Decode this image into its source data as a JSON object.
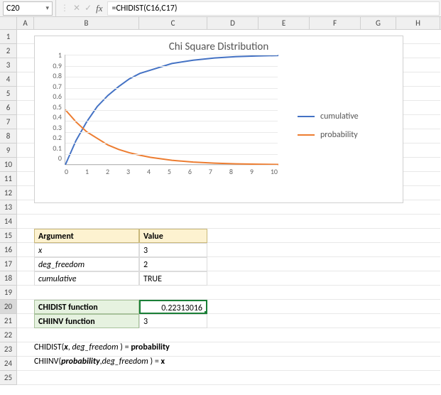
{
  "formula_bar": {
    "cell_ref": "C20",
    "formula": "=CHIDIST(C16,C17)"
  },
  "columns": [
    "",
    "A",
    "B",
    "C",
    "D",
    "E",
    "F",
    "G",
    "H"
  ],
  "row_count": 25,
  "active_row": 20,
  "chart": {
    "type": "line",
    "title": "Chi Square Distribution",
    "title_fontsize": 15,
    "background_color": "#ffffff",
    "border_color": "#d0d0d0",
    "grid_color": "#eaeaea",
    "axis_color": "#bbbbbb",
    "label_color": "#666666",
    "label_fontsize": 10,
    "xlim": [
      0,
      10
    ],
    "ylim": [
      0,
      1
    ],
    "xtick_step": 1,
    "ytick_step": 0.1,
    "xticks": [
      "0",
      "1",
      "2",
      "3",
      "4",
      "5",
      "6",
      "7",
      "8",
      "9",
      "10"
    ],
    "yticks": [
      "1",
      "0.9",
      "0.8",
      "0.7",
      "0.6",
      "0.5",
      "0.4",
      "0.3",
      "0.2",
      "0.1",
      "0"
    ],
    "series": [
      {
        "name": "cumulative",
        "color": "#4472c4",
        "line_width": 2,
        "x": [
          0,
          0.5,
          1,
          1.5,
          2,
          2.5,
          3,
          3.5,
          4,
          5,
          6,
          7,
          8,
          9,
          10
        ],
        "y": [
          0,
          0.22,
          0.39,
          0.53,
          0.63,
          0.71,
          0.78,
          0.83,
          0.86,
          0.92,
          0.95,
          0.97,
          0.982,
          0.989,
          0.993
        ]
      },
      {
        "name": "probability",
        "color": "#ed7d31",
        "line_width": 2,
        "x": [
          0,
          0.5,
          1,
          1.5,
          2,
          2.5,
          3,
          3.5,
          4,
          5,
          6,
          7,
          8,
          9,
          10
        ],
        "y": [
          0.5,
          0.39,
          0.3,
          0.24,
          0.18,
          0.14,
          0.11,
          0.087,
          0.068,
          0.041,
          0.025,
          0.015,
          0.0092,
          0.0056,
          0.0034
        ]
      }
    ],
    "legend_position": "right"
  },
  "args_table": {
    "headers": {
      "arg": "Argument",
      "val": "Value"
    },
    "rows": [
      {
        "arg": "x",
        "val": "3"
      },
      {
        "arg": "deg_freedom",
        "val": "2"
      },
      {
        "arg": "cumulative",
        "val": "TRUE"
      }
    ],
    "header_bg": "#fdf2d0",
    "header_border": "#c9b87a",
    "cell_border": "#dcdcdc"
  },
  "fn_table": {
    "rows": [
      {
        "label": "CHIDIST function",
        "val": "0.22313016",
        "active": true
      },
      {
        "label": "CHIINV function",
        "val": "3",
        "active": false
      }
    ],
    "label_bg": "#e6f2e0",
    "label_border": "#a8c29b",
    "active_border": "#1a7f37"
  },
  "notes": {
    "line1": {
      "fn": "CHIDIST(",
      "a1": "x",
      "mid": ", ",
      "a2": "deg_freedom",
      "end": " ) = ",
      "res": "probability"
    },
    "line2": {
      "fn": "CHIINV(",
      "a1": "probability",
      "mid": ",",
      "a2": "deg_freedom",
      "end": " ) = ",
      "res": "x"
    }
  }
}
